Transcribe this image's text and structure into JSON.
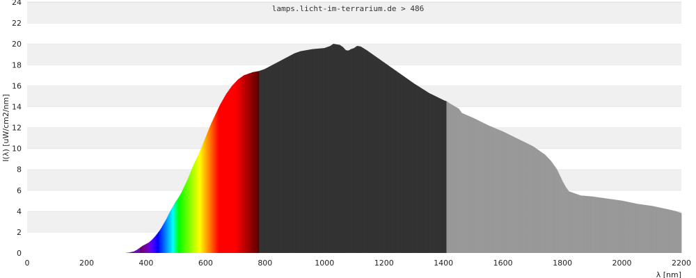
{
  "chart_data": {
    "type": "area",
    "title": "lamps.licht-im-terrarium.de > 486",
    "xlabel": "λ [nm]",
    "ylabel": "I(λ)  [uW/cm2/nm]",
    "xlim": [
      0,
      2200
    ],
    "ylim": [
      0,
      24
    ],
    "x_ticks": [
      0,
      200,
      400,
      600,
      800,
      1000,
      1200,
      1400,
      1600,
      1800,
      2000,
      2200
    ],
    "y_ticks": [
      0,
      2,
      4,
      6,
      8,
      10,
      12,
      14,
      16,
      18,
      20,
      22,
      24
    ],
    "grid": "horizontal alternating bands",
    "regions": [
      {
        "name": "UV",
        "range": [
          300,
          380
        ],
        "color": "#6a0dad"
      },
      {
        "name": "visible",
        "range": [
          380,
          780
        ],
        "color": "spectral"
      },
      {
        "name": "near-IR",
        "range": [
          780,
          1410
        ],
        "color": "#333333"
      },
      {
        "name": "IR",
        "range": [
          1410,
          2200
        ],
        "color": "#999999"
      }
    ],
    "series": [
      {
        "x": [
          330,
          345,
          360,
          370,
          380,
          390,
          400,
          410,
          420,
          430,
          440,
          450,
          460,
          470,
          480,
          490,
          500,
          510,
          520,
          530,
          540,
          550,
          560,
          570,
          580,
          590,
          600,
          610,
          620,
          630,
          640,
          650,
          660,
          670,
          680,
          690,
          700,
          710,
          720,
          730,
          740,
          750,
          760,
          770,
          780,
          800,
          820,
          840,
          860,
          880,
          900,
          920,
          940,
          960,
          980,
          1000,
          1020,
          1030,
          1040,
          1050,
          1060,
          1070,
          1080,
          1090,
          1100,
          1110,
          1120,
          1140,
          1160,
          1180,
          1200,
          1250,
          1300,
          1350,
          1400,
          1410,
          1420,
          1450,
          1460,
          1500,
          1550,
          1600,
          1650,
          1700,
          1720,
          1740,
          1760,
          1780,
          1790,
          1800,
          1810,
          1820,
          1840,
          1850,
          1860,
          1880,
          1900,
          1950,
          2000,
          2050,
          2100,
          2150,
          2180,
          2200
        ],
        "values": [
          0,
          0.05,
          0.15,
          0.3,
          0.5,
          0.7,
          0.85,
          1.0,
          1.25,
          1.55,
          1.9,
          2.3,
          2.8,
          3.3,
          3.9,
          4.4,
          4.9,
          5.3,
          5.8,
          6.4,
          7.0,
          7.7,
          8.4,
          9.0,
          9.6,
          10.3,
          11.0,
          11.7,
          12.4,
          13.0,
          13.6,
          14.2,
          14.7,
          15.2,
          15.6,
          16.0,
          16.3,
          16.6,
          16.8,
          17.0,
          17.1,
          17.2,
          17.3,
          17.35,
          17.4,
          17.6,
          17.9,
          18.2,
          18.5,
          18.8,
          19.1,
          19.3,
          19.4,
          19.5,
          19.55,
          19.6,
          19.8,
          20.0,
          19.95,
          19.9,
          19.7,
          19.4,
          19.35,
          19.5,
          19.6,
          19.8,
          19.75,
          19.4,
          19.0,
          18.6,
          18.2,
          17.2,
          16.2,
          15.3,
          14.6,
          14.5,
          14.3,
          13.8,
          13.4,
          12.9,
          12.2,
          11.6,
          10.9,
          10.2,
          9.8,
          9.4,
          8.8,
          8.0,
          7.4,
          6.8,
          6.3,
          5.9,
          5.7,
          5.6,
          5.5,
          5.45,
          5.4,
          5.2,
          5.0,
          4.7,
          4.5,
          4.2,
          4.0,
          3.8
        ]
      }
    ]
  }
}
